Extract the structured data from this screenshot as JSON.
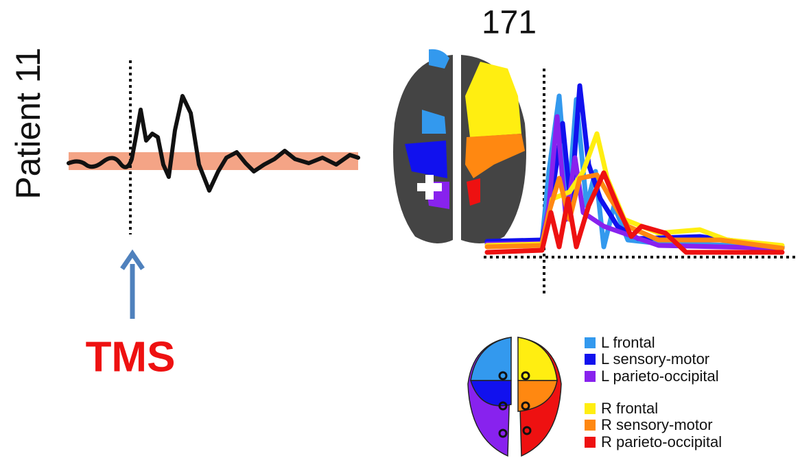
{
  "figure": {
    "patient": "Patient 11",
    "number": "171",
    "stimulus": "TMS",
    "legend": [
      {
        "label": "L frontal",
        "color": "#3399ee"
      },
      {
        "label": "L sensory-motor",
        "color": "#1111ee"
      },
      {
        "label": "L parieto-occipital",
        "color": "#8822ee"
      },
      {
        "label": "R frontal",
        "color": "#ffee11"
      },
      {
        "label": "R sensory-motor",
        "color": "#ff8811"
      },
      {
        "label": "R parieto-occipital",
        "color": "#ee1111"
      }
    ]
  }
}
